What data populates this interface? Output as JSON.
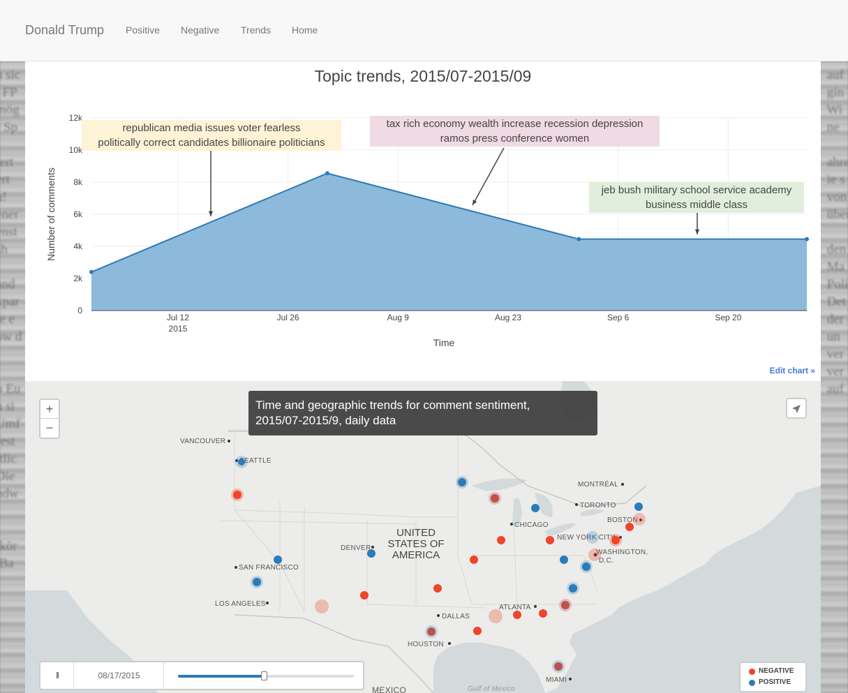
{
  "navbar": {
    "brand": "Donald Trump",
    "links": [
      "Positive",
      "Negative",
      "Trends",
      "Home"
    ]
  },
  "chart": {
    "title": "Topic trends, 2015/07-2015/09",
    "edit_label": "Edit chart »",
    "annotations": [
      {
        "line1": "republican media issues voter fearless",
        "line2": "politically correct candidates billionaire politicians",
        "color": "#fff3d6"
      },
      {
        "line1": "tax rich economy wealth increase recession depression",
        "line2": "ramos press conference women",
        "color": "#f0dae3"
      },
      {
        "line1": "jeb bush military school service academy",
        "line2": "business middle class",
        "color": "#e1eedb"
      }
    ]
  },
  "chart_data": {
    "type": "area",
    "title": "Topic trends, 2015/07-2015/09",
    "xlabel": "Time",
    "ylabel": "Number of comments",
    "x": [
      "2015-07-01",
      "2015-07-31",
      "2015-09-01",
      "2015-09-30"
    ],
    "y": [
      2400,
      8550,
      4450,
      4450
    ],
    "ylim": [
      0,
      12000
    ],
    "y_ticks": [
      "0",
      "2k",
      "4k",
      "6k",
      "8k",
      "10k",
      "12k"
    ],
    "x_ticks": [
      "Jul 12",
      "Jul 26",
      "Aug 9",
      "Aug 23",
      "Sep 6",
      "Sep 20"
    ],
    "x_tick_sublabel": "2015",
    "fill_color": "#8dbadb",
    "line_color": "#2b7bb8",
    "grid": true
  },
  "map": {
    "tooltip_line1": "Time and geographic trends for comment sentiment,",
    "tooltip_line2": "2015/07-2015/9, daily data",
    "zoom_in": "+",
    "zoom_out": "−",
    "country_label": [
      "UNITED",
      "STATES OF",
      "AMERICA"
    ],
    "cities": [
      "VANCOUVER",
      "SEATTLE",
      "MONTRÉAL",
      "TORONTO",
      "BOSTON",
      "CHICAGO",
      "NEW YORK CITY",
      "WASHINGTON,",
      "D.C.",
      "DENVER",
      "SAN FRANCISCO",
      "LOS ANGELES",
      "DALLAS",
      "ATLANTA",
      "HOUSTON",
      "MIAMI",
      "Gulf of Mexico",
      "MEXICO"
    ],
    "time_control": {
      "pause_icon": "II",
      "date": "08/17/2015",
      "progress": 0.49
    },
    "legend": {
      "negative_label": "NEGATIVE",
      "positive_label": "POSITIVE",
      "negative_color": "#f0452a",
      "positive_color": "#2b7bb8"
    }
  }
}
